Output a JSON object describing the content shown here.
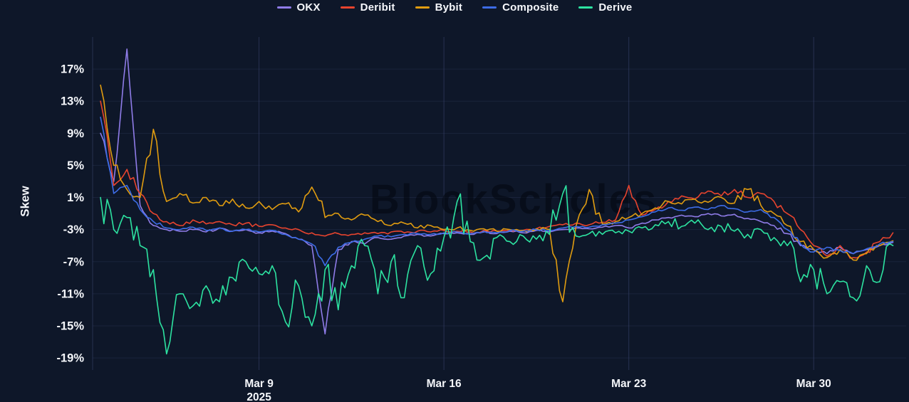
{
  "theme": {
    "background": "#0e1729",
    "grid": "#39436b",
    "text": "#f5f7fb",
    "watermark_color": "rgba(3,8,18,0.62)"
  },
  "chart_data": {
    "type": "line",
    "title": "",
    "ylabel": "Skew",
    "watermark": "BlockScholes",
    "legend_position": "top",
    "x_unit": "days since 2025-03-03",
    "xlim": [
      -0.3,
      30.5
    ],
    "ylim": [
      -20.5,
      21
    ],
    "x_start": 0,
    "x_step": 0.5,
    "yticks": [
      {
        "value": 17,
        "label": "17%"
      },
      {
        "value": 13,
        "label": "13%"
      },
      {
        "value": 9,
        "label": "9%"
      },
      {
        "value": 5,
        "label": "5%"
      },
      {
        "value": 1,
        "label": "1%"
      },
      {
        "value": -3,
        "label": "-3%"
      },
      {
        "value": -7,
        "label": "-7%"
      },
      {
        "value": -11,
        "label": "-11%"
      },
      {
        "value": -15,
        "label": "-15%"
      },
      {
        "value": -19,
        "label": "-19%"
      }
    ],
    "xticks": [
      {
        "value": 6,
        "label": "Mar 9",
        "sublabel": "2025"
      },
      {
        "value": 13,
        "label": "Mar 16",
        "sublabel": ""
      },
      {
        "value": 20,
        "label": "Mar 23",
        "sublabel": ""
      },
      {
        "value": 27,
        "label": "Mar 30",
        "sublabel": ""
      }
    ],
    "series": [
      {
        "name": "OKX",
        "color": "#8f7ce8",
        "jitter": 0.3,
        "values": [
          9,
          3,
          19.5,
          0,
          -2.5,
          -3,
          -3.2,
          -3,
          -3.3,
          -2.8,
          -3.2,
          -3,
          -3.4,
          -3.2,
          -3.5,
          -4.2,
          -5,
          -16,
          -5.5,
          -4.5,
          -4.8,
          -4,
          -4.2,
          -3.8,
          -3.6,
          -3.8,
          -3.5,
          -3.4,
          -3.6,
          -3.3,
          -3.5,
          -3.2,
          -3.4,
          -3.1,
          -3.3,
          -3,
          -2.8,
          -2.9,
          -2.7,
          -2.5,
          -2.8,
          -2.2,
          -1.8,
          -1.5,
          -1.2,
          -1.4,
          -1,
          -1.3,
          -1.1,
          -1.6,
          -2,
          -2.5,
          -3.5,
          -5,
          -5.5,
          -6,
          -5.2,
          -6,
          -5.5,
          -5,
          -4.6
        ]
      },
      {
        "name": "Deribit",
        "color": "#e8442e",
        "jitter": 0.45,
        "values": [
          13,
          2.5,
          4.5,
          1.5,
          -1,
          -2,
          -2.5,
          -1.8,
          -2.3,
          -2,
          -2.4,
          -2.2,
          -2.6,
          -2.4,
          -2.8,
          -3,
          -3.4,
          -3.8,
          -3.5,
          -3.6,
          -3.4,
          -3.5,
          -3.3,
          -3.4,
          -3.2,
          -3.3,
          -3.1,
          -3.2,
          -3.3,
          -3.1,
          -3.2,
          -3,
          -3.1,
          -2.9,
          -2.6,
          -2.4,
          -2.2,
          -2.4,
          -2.1,
          -1.8,
          2.5,
          -1.2,
          -0.5,
          0.5,
          1.2,
          0.8,
          1.8,
          1.2,
          2,
          1,
          1.5,
          0.5,
          -1,
          -3,
          -5,
          -6.3,
          -5,
          -6.5,
          -5.8,
          -4.5,
          -3.4
        ]
      },
      {
        "name": "Bybit",
        "color": "#e09c10",
        "jitter": 0.55,
        "values": [
          15,
          5,
          2,
          1,
          9.5,
          0.5,
          1.5,
          0.3,
          1,
          0,
          0.8,
          -0.3,
          0.5,
          -0.5,
          0.2,
          -0.8,
          2.3,
          -1.5,
          -1,
          -1.8,
          -1.2,
          -2,
          -2.5,
          -2.2,
          -2.8,
          -2.5,
          -3,
          -2.8,
          -3.1,
          -2.9,
          -3.2,
          -3,
          -3.1,
          -2.9,
          -3,
          -12,
          -2.6,
          2,
          -2.3,
          -2,
          -1.5,
          -1,
          -0.3,
          0.5,
          0.2,
          0.8,
          0.4,
          1,
          0.3,
          2,
          0,
          -1,
          -2.5,
          -4.5,
          -5.5,
          -6.5,
          -5.5,
          -6.8,
          -6,
          -5,
          -4.4
        ]
      },
      {
        "name": "Composite",
        "color": "#3d6ce6",
        "jitter": 0.3,
        "values": [
          11,
          1.5,
          2.5,
          -0.5,
          -2,
          -2.8,
          -3,
          -2.7,
          -3.1,
          -2.8,
          -3.2,
          -3,
          -3.3,
          -3.1,
          -3.6,
          -4.2,
          -4.8,
          -7.5,
          -5.2,
          -4.6,
          -4.2,
          -3.8,
          -3.9,
          -3.6,
          -3.5,
          -3.6,
          -3.4,
          -3.3,
          -3.5,
          -3.2,
          -3.4,
          -3.1,
          -3.2,
          -3,
          -3.1,
          -2.8,
          -2.6,
          -2.7,
          -2.4,
          -2.2,
          -1.8,
          -1.4,
          -0.8,
          -0.3,
          -0.6,
          -0.2,
          -0.5,
          0,
          -0.4,
          -0.8,
          -0.5,
          -1.5,
          -3,
          -4.8,
          -5.8,
          -5.2,
          -5.6,
          -6,
          -5.4,
          -4.8,
          -4.5
        ]
      },
      {
        "name": "Derive",
        "color": "#2de3a1",
        "jitter": 1.1,
        "values": [
          1,
          -3,
          -1.5,
          -5,
          -8,
          -18.5,
          -11,
          -12.5,
          -10,
          -12,
          -9,
          -7,
          -8.5,
          -7.5,
          -14.5,
          -10,
          -15,
          -8,
          -13,
          -7.5,
          -5,
          -11,
          -7,
          -11.5,
          -5,
          -8.5,
          -4,
          0.5,
          -4.5,
          -6.5,
          -4,
          -4.5,
          -3.8,
          -4.2,
          -3.6,
          1.5,
          -3.8,
          -3.5,
          -3.6,
          -3.4,
          -3.2,
          -2.8,
          -2.4,
          -2,
          -2.6,
          -2.2,
          -3,
          -2.6,
          -3.2,
          -3.6,
          -3,
          -4,
          -5,
          -9.5,
          -8,
          -11,
          -9.5,
          -11.5,
          -7.5,
          -9.5,
          -5
        ]
      }
    ]
  }
}
